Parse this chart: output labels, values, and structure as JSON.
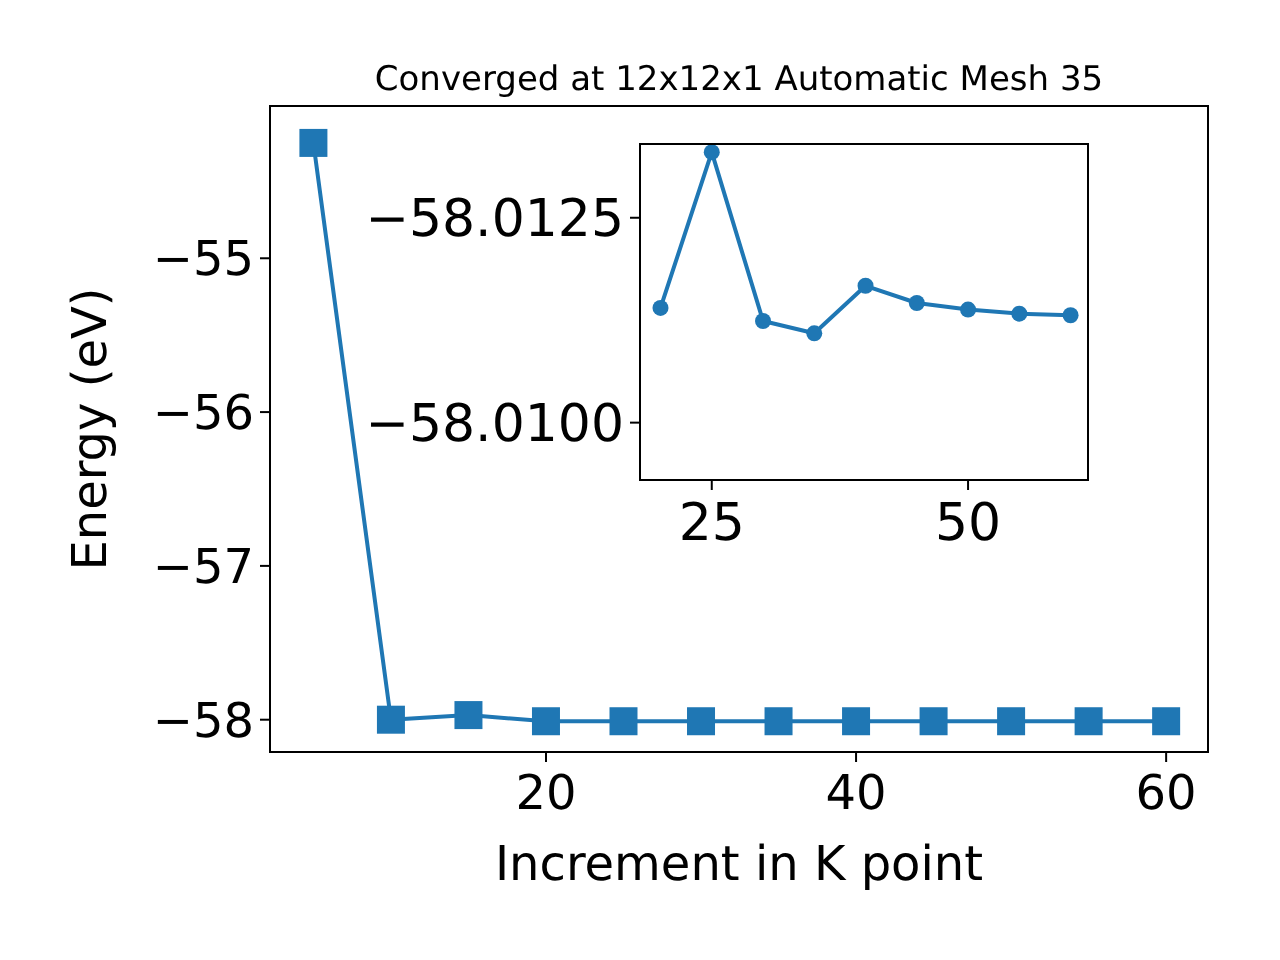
{
  "chart_data": [
    {
      "type": "line",
      "title": "Converged at 12x12x1 Automatic Mesh 35",
      "xlabel": "Increment in K point",
      "ylabel": "Energy (eV)",
      "x": [
        5,
        10,
        15,
        20,
        25,
        30,
        35,
        40,
        45,
        50,
        55,
        60
      ],
      "series": [
        {
          "color": "#1f77b4",
          "values": [
            -54.25,
            -58.0,
            -57.97,
            -58.01,
            -58.01,
            -58.01,
            -58.01,
            -58.01,
            -58.01,
            -58.01,
            -58.01,
            -58.01
          ]
        }
      ],
      "xlim": [
        2.2,
        62.7
      ],
      "ylim": [
        -58.21,
        -54.01
      ],
      "xticks": [
        20,
        40,
        60
      ],
      "yticks": [
        -58,
        -57,
        -56,
        -55
      ],
      "marker": "square",
      "grid": false
    },
    {
      "type": "line",
      "x": [
        20,
        25,
        30,
        35,
        40,
        45,
        50,
        55,
        60
      ],
      "series": [
        {
          "color": "#1f77b4",
          "values": [
            -58.0114,
            -58.0133,
            -58.01124,
            -58.01109,
            -58.01167,
            -58.01146,
            -58.01138,
            -58.01133,
            -58.01131
          ]
        }
      ],
      "xlim": [
        18,
        61.7
      ],
      "ylim": [
        -58.0093,
        -58.0134
      ],
      "xticks": [
        25,
        50
      ],
      "yticks": [
        -58.0125,
        {
          "value": -58.01,
          "label": "−58.0100"
        }
      ],
      "marker": "circle",
      "grid": false
    }
  ]
}
